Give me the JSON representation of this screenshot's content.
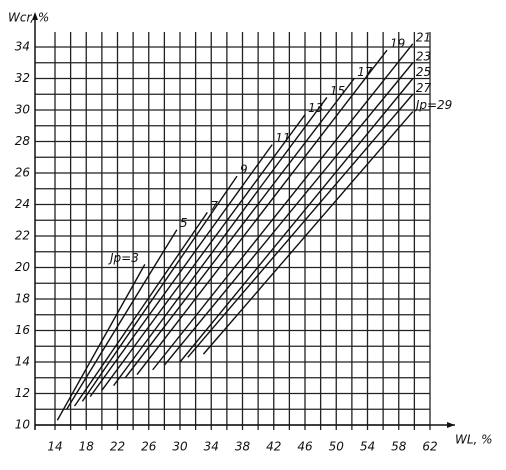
{
  "chart_data": {
    "type": "line",
    "y_label": "Wcr, %",
    "x_label": "WL, %",
    "xlim": [
      14,
      62
    ],
    "ylim": [
      10,
      34
    ],
    "xticks": [
      14,
      18,
      22,
      26,
      30,
      34,
      38,
      42,
      46,
      50,
      54,
      58,
      62
    ],
    "yticks": [
      10,
      12,
      14,
      16,
      18,
      20,
      22,
      24,
      26,
      28,
      30,
      32,
      34
    ],
    "grid": true,
    "minor_grid": true,
    "color": "#111111",
    "series": [
      {
        "name": "Jp=3",
        "x": [
          14.3,
          25.5
        ],
        "values": [
          10.3,
          20.2
        ]
      },
      {
        "name": "5",
        "x": [
          15.5,
          29.6
        ],
        "values": [
          11,
          22.4
        ]
      },
      {
        "name": "7",
        "x": [
          16.5,
          33.5
        ],
        "values": [
          11.2,
          23.5
        ]
      },
      {
        "name": "9",
        "x": [
          17.5,
          37.3
        ],
        "values": [
          11.5,
          25.8
        ]
      },
      {
        "name": "11",
        "x": [
          18.5,
          41.8
        ],
        "values": [
          11.8,
          27.8
        ]
      },
      {
        "name": "13",
        "x": [
          20,
          46
        ],
        "values": [
          12.2,
          29.7
        ]
      },
      {
        "name": "15",
        "x": [
          21.5,
          48.8
        ],
        "values": [
          12.5,
          30.8
        ]
      },
      {
        "name": "17",
        "x": [
          23,
          52.3
        ],
        "values": [
          13,
          32
        ]
      },
      {
        "name": "19",
        "x": [
          24.5,
          56.5
        ],
        "values": [
          13.2,
          33.8
        ]
      },
      {
        "name": "21",
        "x": [
          26.5,
          59.8
        ],
        "values": [
          13.5,
          34.2
        ]
      },
      {
        "name": "23",
        "x": [
          28,
          59.8
        ],
        "values": [
          13.8,
          33
        ]
      },
      {
        "name": "25",
        "x": [
          30,
          59.8
        ],
        "values": [
          14,
          32
        ]
      },
      {
        "name": "27",
        "x": [
          31,
          59.8
        ],
        "values": [
          14.3,
          31
        ]
      },
      {
        "name": "Jp=29",
        "x": [
          33,
          59.8
        ],
        "values": [
          14.5,
          29.9
        ]
      }
    ]
  }
}
